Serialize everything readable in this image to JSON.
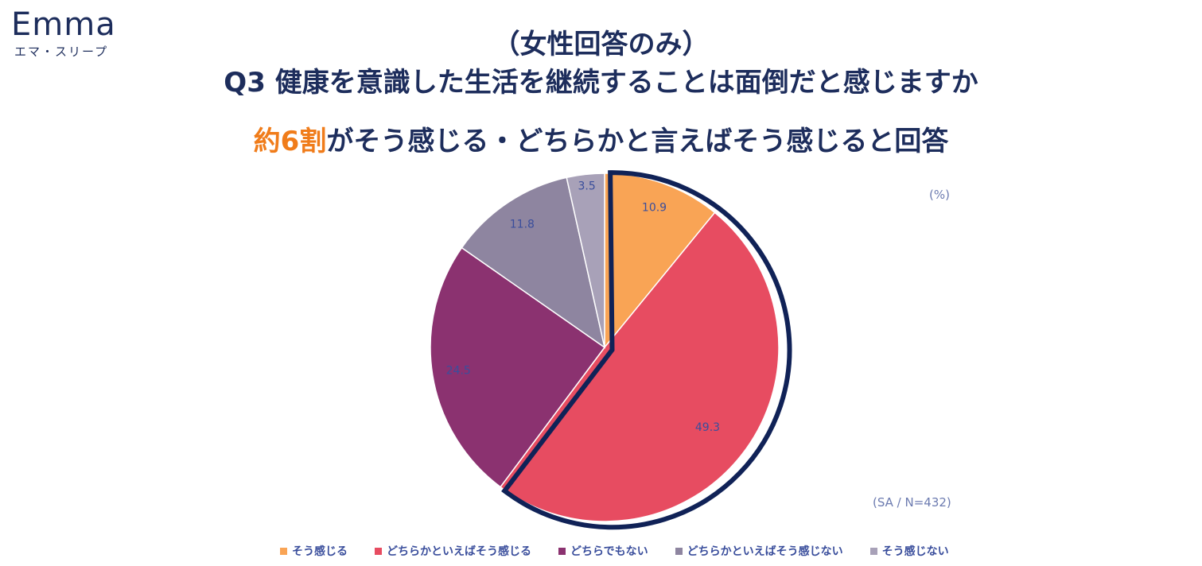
{
  "logo": {
    "word": "Emma",
    "kana": "エマ・スリープ"
  },
  "title": {
    "line1": "（女性回答のみ）",
    "line2": "Q3 健康を意識した生活を継続することは面倒だと感じますか"
  },
  "headline": {
    "highlight": "約6割",
    "rest": "がそう感じる・どちらかと言えばそう感じると回答",
    "highlight_color": "#f07c1a"
  },
  "unit_label": "(%)",
  "sample_label": "(SA / N=432)",
  "chart_data": {
    "type": "pie",
    "start_angle_deg": 0,
    "direction": "clockwise",
    "slices": [
      {
        "label": "そう感じる",
        "value": 10.9,
        "color": "#f9a455"
      },
      {
        "label": "どちらかといえばそう感じる",
        "value": 49.3,
        "color": "#e74c61"
      },
      {
        "label": "どちらでもない",
        "value": 24.5,
        "color": "#8b3270"
      },
      {
        "label": "どちらかといえばそう感じない",
        "value": 11.8,
        "color": "#8e85a0"
      },
      {
        "label": "そう感じない",
        "value": 3.5,
        "color": "#a8a1b8"
      }
    ],
    "highlighted_slices": [
      "そう感じる",
      "どちらかといえばそう感じる"
    ],
    "highlight_outline_color": "#102257",
    "data_label_color": "#3a4e9c",
    "legend_position": "bottom"
  }
}
